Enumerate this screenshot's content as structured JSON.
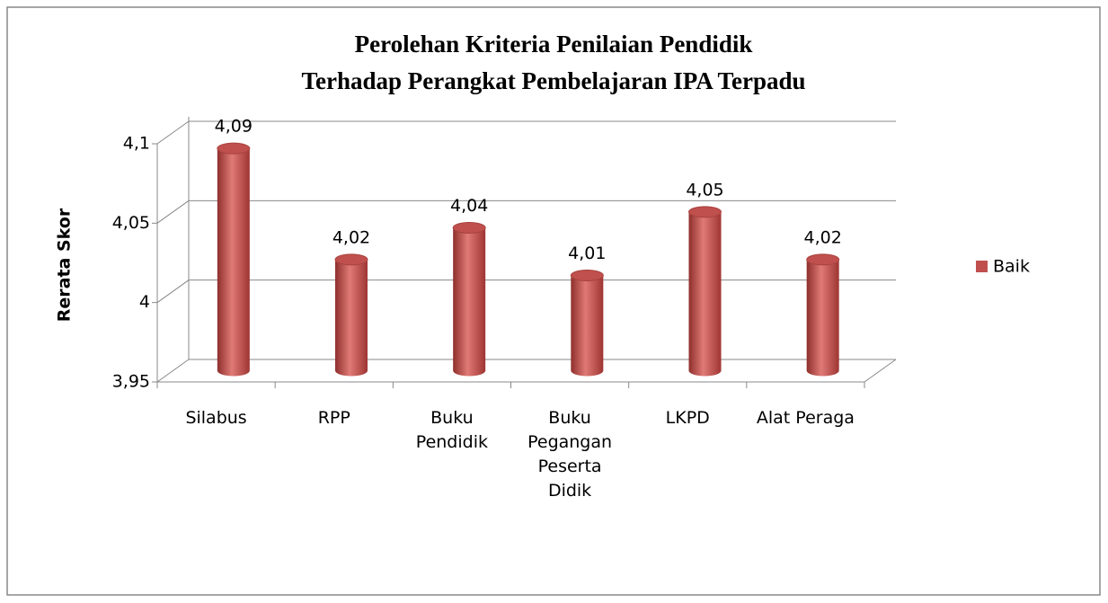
{
  "chart_data": {
    "type": "bar3d",
    "title": [
      "Perolehan Kriteria Penilaian Pendidik",
      "Terhadap Perangkat  Pembelajaran IPA Terpadu"
    ],
    "y_label": "Rerata Skor",
    "categories": [
      "Silabus",
      "RPP",
      "Buku Pendidik",
      "Buku Pegangan Peserta Didik",
      "LKPD",
      "Alat Peraga"
    ],
    "series": [
      {
        "name": "Baik",
        "color": "#c0504d",
        "values": [
          4.09,
          4.02,
          4.04,
          4.01,
          4.05,
          4.02
        ],
        "value_labels": [
          "4,09",
          "4,02",
          "4,04",
          "4,01",
          "4,05",
          "4,02"
        ]
      }
    ],
    "ylim": [
      3.95,
      4.1
    ],
    "yticks": [
      {
        "value": 3.95,
        "label": "3,95"
      },
      4,
      {
        "value": 4.05,
        "label": "4,05"
      },
      {
        "value": 4.1,
        "label": "4,1"
      }
    ],
    "grid": true,
    "legend": "right"
  }
}
